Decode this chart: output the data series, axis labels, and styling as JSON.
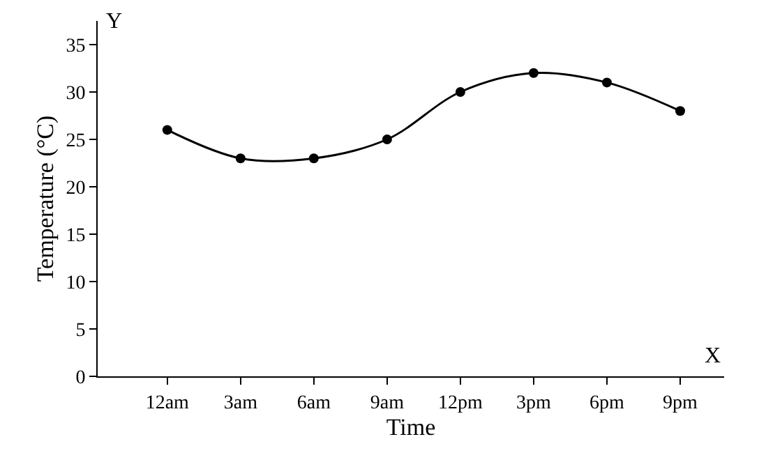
{
  "chart_data": {
    "type": "line",
    "xlabel": "Time",
    "ylabel": "Temperature (°C)",
    "categories": [
      "12am",
      "3am",
      "6am",
      "9am",
      "12pm",
      "3pm",
      "6pm",
      "9pm"
    ],
    "series": [
      {
        "color": "#000000",
        "values": [
          26,
          23,
          23,
          25,
          30,
          32,
          31,
          28
        ]
      }
    ],
    "ylim": [
      0,
      37.5
    ],
    "yticks": [
      0,
      5,
      10,
      15,
      20,
      25,
      30,
      35
    ],
    "annotations": [
      "Y",
      "X"
    ],
    "marker": "circle",
    "line_style": "solid",
    "legend": false
  }
}
